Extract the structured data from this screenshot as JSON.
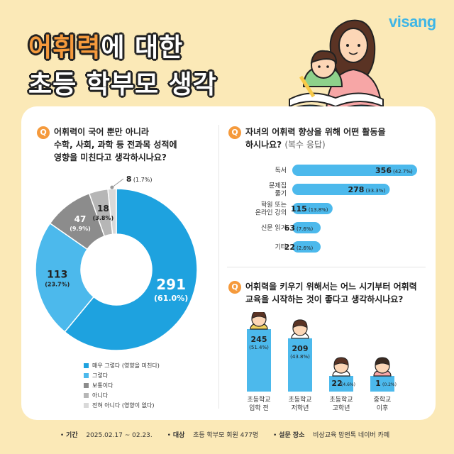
{
  "brand": "visang",
  "title": {
    "highlight": "어휘력",
    "line1_rest": "에 대한",
    "line2": "초등 학부모 생각"
  },
  "colors": {
    "accent": "#f59a3c",
    "blue": "#4cb9ec",
    "dark_blue": "#1ea2df",
    "grey_dark": "#8c8c8c",
    "grey": "#b6b6b6",
    "grey_light": "#d9d9d9",
    "background": "#fbe9b7"
  },
  "q1": {
    "badge": "Q",
    "line1": "어휘력이 국어 뿐만 아니라",
    "line2": "수학, 사회, 과학 등 전과목 성적에",
    "line3": "영향을 미친다고 생각하시나요?"
  },
  "q2": {
    "badge": "Q",
    "line1": "자녀의 어휘력 향상을 위해 어떤 활동을",
    "line2": "하시나요?",
    "line2_sub": "(복수 응답)"
  },
  "q3": {
    "badge": "Q",
    "line1": "어휘력을 키우기 위해서는 어느 시기부터 어휘력",
    "line2": "교육을 시작하는 것이 좋다고 생각하시나요?"
  },
  "legend": [
    "매우 그렇다 (영향을 미친다)",
    "그렇다",
    "보통이다",
    "아니다",
    "전혀 아니다 (영향이 없다)"
  ],
  "footer": {
    "period_label": "기간",
    "period": "2025.02.17 ~ 02.23.",
    "target_label": "대상",
    "target": "초등 학부모 회원 477명",
    "place_label": "설문 장소",
    "place": "비상교육 맘앤톡 네이버 카페"
  },
  "chart_data": [
    {
      "type": "pie",
      "categories": [
        "매우 그렇다 (영향을 미친다)",
        "그렇다",
        "보통이다",
        "아니다",
        "전혀 아니다 (영향이 없다)"
      ],
      "values": [
        291,
        113,
        47,
        18,
        8
      ],
      "labels": [
        {
          "value": "291",
          "pct": "(61.0%)"
        },
        {
          "value": "113",
          "pct": "(23.7%)"
        },
        {
          "value": "47",
          "pct": "(9.9%)"
        },
        {
          "value": "18",
          "pct": "(3.8%)"
        },
        {
          "value": "8",
          "pct": "(1.7%)"
        }
      ],
      "colors": [
        "#1ea2df",
        "#4cb9ec",
        "#8c8c8c",
        "#b6b6b6",
        "#d9d9d9"
      ]
    },
    {
      "type": "bar",
      "categories": [
        [
          "독서"
        ],
        [
          "문제집",
          "풀기"
        ],
        [
          "학원 또는",
          "온라인 강의"
        ],
        [
          "신문 읽기"
        ],
        [
          "기타"
        ]
      ],
      "values": [
        356,
        278,
        115,
        63,
        22
      ],
      "labels": [
        {
          "value": "356",
          "pct": "(42.7%)"
        },
        {
          "value": "278",
          "pct": "(33.3%)"
        },
        {
          "value": "115",
          "pct": "(13.8%)"
        },
        {
          "value": "63",
          "pct": "(7.6%)"
        },
        {
          "value": "22",
          "pct": "(2.6%)"
        }
      ],
      "orientation": "horizontal"
    },
    {
      "type": "bar",
      "categories": [
        [
          "초등학교",
          "입학 전"
        ],
        [
          "초등학교",
          "저학년"
        ],
        [
          "초등학교",
          "고학년"
        ],
        [
          "중학교",
          "이후"
        ]
      ],
      "values": [
        245,
        209,
        22,
        1
      ],
      "labels": [
        {
          "value": "245",
          "pct": "(51.4%)"
        },
        {
          "value": "209",
          "pct": "(43.8%)"
        },
        {
          "value": "22",
          "pct": "(4.6%)"
        },
        {
          "value": "1",
          "pct": "(0.2%)"
        }
      ],
      "orientation": "vertical"
    }
  ]
}
